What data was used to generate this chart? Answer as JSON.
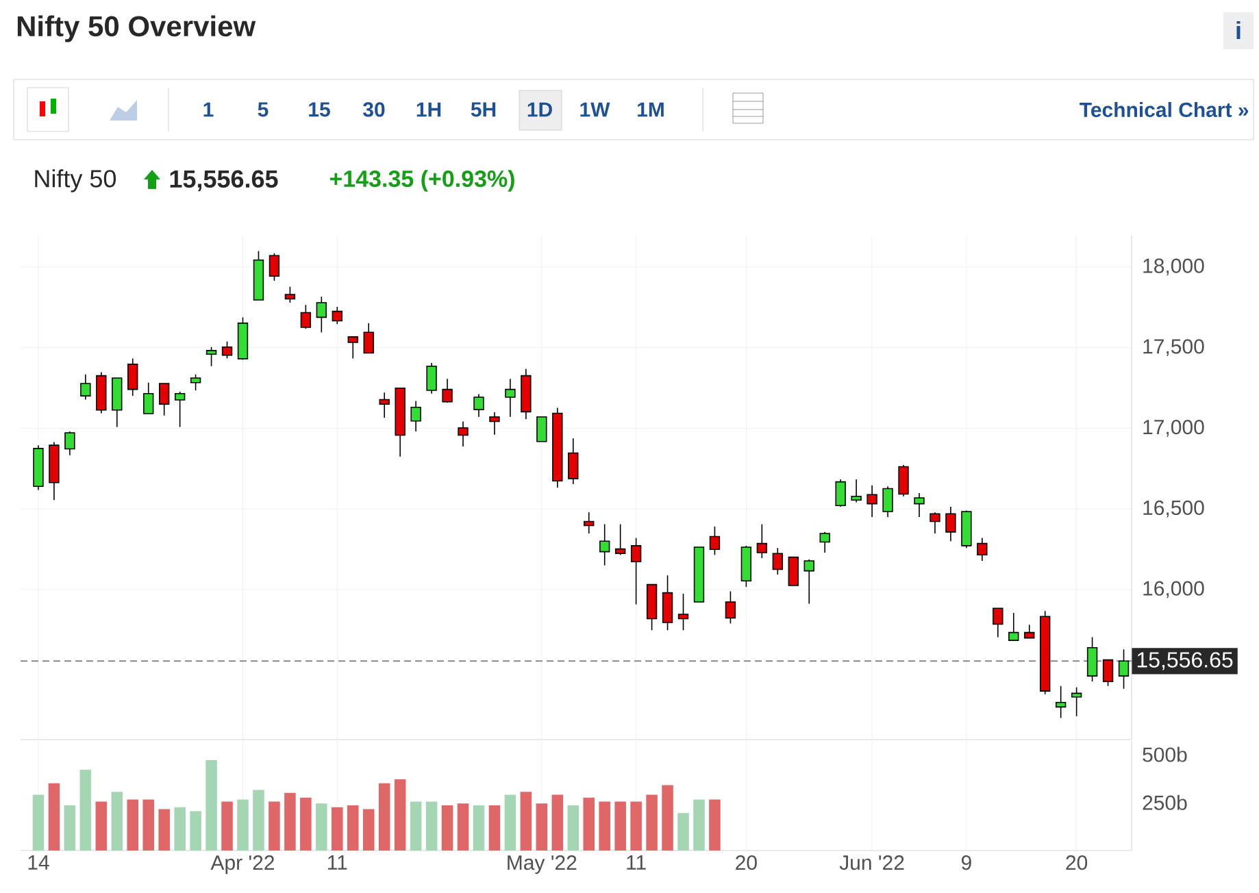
{
  "chart_data": [
    {
      "type": "candlestick",
      "title": "Nifty 50 Overview",
      "subtitle": "Nifty 50",
      "annotations": [
        "1",
        "5",
        "15",
        "30",
        "1H",
        "5H",
        "1D",
        "1W",
        "1M",
        "Technical Chart »",
        "15,556.65",
        "+143.35 (+0.93%)",
        "i"
      ],
      "categories": [
        null,
        null,
        null,
        null,
        null,
        null,
        null,
        null,
        null,
        null,
        null,
        null,
        null,
        null,
        null,
        null,
        null,
        null,
        null,
        null,
        null,
        null,
        null,
        null,
        null,
        null,
        null,
        null,
        null,
        null,
        null,
        null,
        null,
        null,
        null,
        null,
        null,
        null,
        null,
        null,
        null,
        null,
        null,
        null,
        null,
        null,
        null,
        null,
        null,
        null,
        null,
        null,
        null,
        null,
        null,
        null,
        null,
        null,
        null,
        null,
        null,
        null,
        null,
        null,
        null,
        null,
        null,
        null,
        null,
        null
      ],
      "ohlc": [
        [
          16640,
          16895,
          16617,
          16875
        ],
        [
          16895,
          16915,
          16555,
          16663
        ],
        [
          16872,
          16980,
          16833,
          16972
        ],
        [
          17201,
          17334,
          17178,
          17278
        ],
        [
          17326,
          17348,
          17093,
          17113
        ],
        [
          17113,
          17312,
          17008,
          17312
        ],
        [
          17397,
          17433,
          17201,
          17241
        ],
        [
          17091,
          17283,
          17091,
          17215
        ],
        [
          17278,
          17278,
          17079,
          17150
        ],
        [
          17176,
          17227,
          17008,
          17215
        ],
        [
          17283,
          17334,
          17235,
          17312
        ],
        [
          17459,
          17504,
          17385,
          17482
        ],
        [
          17504,
          17538,
          17433,
          17453
        ],
        [
          17431,
          17688,
          17425,
          17652
        ],
        [
          17796,
          18099,
          17796,
          18043
        ],
        [
          18071,
          18085,
          17915,
          17943
        ],
        [
          17830,
          17878,
          17779,
          17802
        ],
        [
          17717,
          17765,
          17617,
          17626
        ],
        [
          17688,
          17816,
          17595,
          17779
        ],
        [
          17725,
          17753,
          17646,
          17666
        ],
        [
          17567,
          17567,
          17433,
          17533
        ],
        [
          17595,
          17652,
          17467,
          17467
        ],
        [
          17178,
          17221,
          17065,
          17150
        ],
        [
          17249,
          17249,
          16824,
          16957
        ],
        [
          17045,
          17170,
          16980,
          17130
        ],
        [
          17235,
          17405,
          17215,
          17385
        ],
        [
          17241,
          17306,
          17159,
          17164
        ],
        [
          17003,
          17042,
          16887,
          16957
        ],
        [
          17116,
          17212,
          17071,
          17193
        ],
        [
          17071,
          17099,
          16960,
          17042
        ],
        [
          17193,
          17306,
          17071,
          17241
        ],
        [
          17326,
          17368,
          17057,
          17102
        ],
        [
          16918,
          17071,
          16918,
          17071
        ],
        [
          17093,
          17127,
          16632,
          16674
        ],
        [
          16847,
          16938,
          16654,
          16688
        ],
        [
          16422,
          16479,
          16348,
          16397
        ],
        [
          16235,
          16405,
          16150,
          16300
        ],
        [
          16252,
          16405,
          16215,
          16224
        ],
        [
          16272,
          16320,
          15908,
          16173
        ],
        [
          16031,
          16031,
          15748,
          15819
        ],
        [
          15980,
          16088,
          15748,
          15796
        ],
        [
          15847,
          15974,
          15748,
          15819
        ],
        [
          15923,
          16263,
          15923,
          16263
        ],
        [
          16329,
          16391,
          16215,
          16249
        ],
        [
          15923,
          15989,
          15790,
          15824
        ],
        [
          16054,
          16272,
          16017,
          16263
        ],
        [
          16286,
          16405,
          16195,
          16229
        ],
        [
          16224,
          16258,
          16093,
          16125
        ],
        [
          16201,
          16201,
          16025,
          16025
        ],
        [
          16116,
          16187,
          15912,
          16178
        ],
        [
          16295,
          16357,
          16229,
          16348
        ],
        [
          16521,
          16683,
          16513,
          16668
        ],
        [
          16555,
          16683,
          16541,
          16578
        ],
        [
          16589,
          16646,
          16450,
          16532
        ],
        [
          16484,
          16640,
          16450,
          16626
        ],
        [
          16762,
          16773,
          16578,
          16592
        ],
        [
          16532,
          16598,
          16450,
          16569
        ],
        [
          16470,
          16479,
          16348,
          16422
        ],
        [
          16470,
          16513,
          16300,
          16357
        ],
        [
          16272,
          16490,
          16258,
          16484
        ],
        [
          16286,
          16320,
          16178,
          16215
        ],
        [
          15884,
          15884,
          15705,
          15785
        ],
        [
          15685,
          15855,
          15685,
          15734
        ],
        [
          15734,
          15782,
          15700,
          15700
        ],
        [
          15833,
          15867,
          15351,
          15371
        ],
        [
          15272,
          15402,
          15204,
          15300
        ],
        [
          15334,
          15394,
          15215,
          15357
        ],
        [
          15464,
          15705,
          15430,
          15640
        ],
        [
          15564,
          15564,
          15402,
          15430
        ],
        [
          15464,
          15629,
          15385,
          15557
        ]
      ],
      "colors": [
        "#33dd33",
        "#e50000",
        "#33dd33",
        "#33dd33",
        "#e50000",
        "#33dd33",
        "#e50000",
        "#33dd33",
        "#e50000",
        "#33dd33",
        "#33dd33",
        "#33dd33",
        "#e50000",
        "#33dd33",
        "#33dd33",
        "#e50000",
        "#e50000",
        "#e50000",
        "#33dd33",
        "#e50000",
        "#e50000",
        "#e50000",
        "#e50000",
        "#e50000",
        "#33dd33",
        "#33dd33",
        "#e50000",
        "#e50000",
        "#33dd33",
        "#e50000",
        "#33dd33",
        "#e50000",
        "#33dd33",
        "#e50000",
        "#e50000",
        "#e50000",
        "#33dd33",
        "#e50000",
        "#e50000",
        "#e50000",
        "#e50000",
        "#e50000",
        "#33dd33",
        "#e50000",
        "#e50000",
        "#33dd33",
        "#e50000",
        "#e50000",
        "#e50000",
        "#33dd33",
        "#33dd33",
        "#33dd33",
        "#33dd33",
        "#e50000",
        "#33dd33",
        "#e50000",
        "#33dd33",
        "#e50000",
        "#e50000",
        "#33dd33",
        "#e50000",
        "#e50000",
        "#33dd33",
        "#e50000",
        "#e50000",
        "#33dd33",
        "#33dd33",
        "#33dd33",
        "#e50000",
        "#33dd33"
      ],
      "ylim": [
        15070,
        18195
      ],
      "yticks": [
        {
          "value": 16000,
          "label": "16,000"
        },
        {
          "value": 16500,
          "label": "16,500"
        },
        {
          "value": 17000,
          "label": "17,000"
        },
        {
          "value": 17500,
          "label": "17,500"
        },
        {
          "value": 18000,
          "label": "18,000"
        }
      ],
      "grid": true,
      "tick_labels": "y",
      "ref_lines": [
        {
          "axis": "y",
          "value": 15556.65,
          "label": "15,556.65",
          "color": "#888888",
          "line_style": "dashed"
        }
      ]
    },
    {
      "type": "bar",
      "categories": [
        "14",
        null,
        null,
        null,
        null,
        null,
        null,
        null,
        null,
        null,
        null,
        null,
        null,
        "Apr '22",
        null,
        null,
        null,
        null,
        null,
        "11",
        null,
        null,
        null,
        null,
        null,
        null,
        null,
        null,
        null,
        null,
        null,
        null,
        "May '22",
        null,
        null,
        null,
        null,
        null,
        "11",
        null,
        null,
        null,
        null,
        null,
        null,
        "20",
        null,
        null,
        null,
        null,
        null,
        null,
        null,
        "Jun '22",
        null,
        null,
        null,
        null,
        null,
        "9",
        null,
        null,
        null,
        null,
        null,
        null,
        "20",
        null,
        null,
        null
      ],
      "values": [
        290,
        350,
        235,
        420,
        255,
        305,
        265,
        265,
        215,
        225,
        205,
        470,
        255,
        265,
        315,
        255,
        300,
        275,
        245,
        225,
        235,
        215,
        350,
        370,
        255,
        255,
        235,
        245,
        235,
        235,
        290,
        305,
        245,
        290,
        235,
        275,
        255,
        255,
        255,
        290,
        340,
        195,
        265,
        265,
        null,
        null,
        null,
        null,
        null,
        null,
        null,
        null,
        null,
        null,
        null,
        null,
        null,
        null,
        null,
        null,
        null,
        null,
        null,
        null,
        null,
        null,
        null,
        null,
        null,
        null
      ],
      "colors": [
        "#a5d6b4",
        "#e06767",
        "#a5d6b4",
        "#a5d6b4",
        "#e06767",
        "#a5d6b4",
        "#e06767",
        "#e06767",
        "#e06767",
        "#a5d6b4",
        "#a5d6b4",
        "#a5d6b4",
        "#e06767",
        "#a5d6b4",
        "#a5d6b4",
        "#e06767",
        "#e06767",
        "#e06767",
        "#a5d6b4",
        "#e06767",
        "#e06767",
        "#e06767",
        "#e06767",
        "#e06767",
        "#a5d6b4",
        "#a5d6b4",
        "#e06767",
        "#e06767",
        "#a5d6b4",
        "#e06767",
        "#a5d6b4",
        "#e06767",
        "#e06767",
        "#e06767",
        "#a5d6b4",
        "#e06767",
        "#e06767",
        "#e06767",
        "#e06767",
        "#e06767",
        "#e06767",
        "#a5d6b4",
        "#a5d6b4",
        "#e06767",
        null,
        null,
        null,
        null,
        null,
        null,
        null,
        null,
        null,
        null,
        null,
        null,
        null,
        null,
        null,
        null,
        null,
        null,
        null,
        null,
        null,
        null,
        null,
        null,
        null,
        null
      ],
      "ylim": [
        0,
        570
      ],
      "yticks": [
        {
          "value": 250,
          "label": "250b"
        },
        {
          "value": 500,
          "label": "500b"
        }
      ],
      "grid": "x"
    }
  ]
}
